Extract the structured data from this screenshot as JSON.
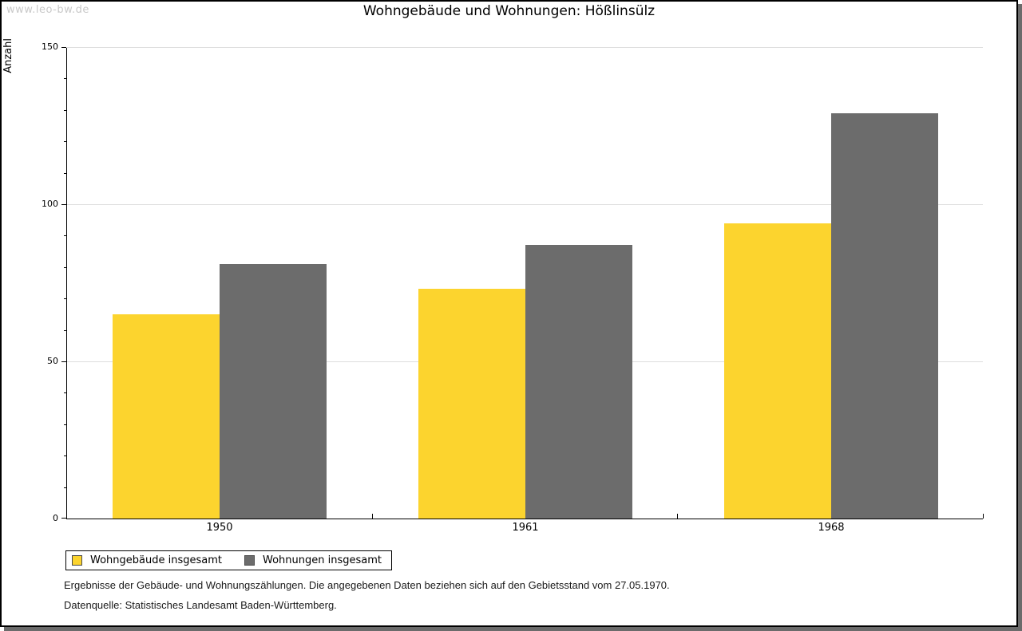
{
  "page": {
    "watermark": "www.leo-bw.de",
    "title": "Wohngebäude und Wohnungen: Hößlinsülz"
  },
  "chart_data": {
    "type": "bar",
    "title": "Wohngebäude und Wohnungen: Hößlinsülz",
    "ylabel": "Anzahl",
    "categories": [
      "1950",
      "1961",
      "1968"
    ],
    "series": [
      {
        "name": "Wohngebäude insgesamt",
        "color": "#FCD42E",
        "values": [
          65,
          73,
          94
        ]
      },
      {
        "name": "Wohnungen insgesamt",
        "color": "#6C6C6C",
        "values": [
          81,
          87,
          129
        ]
      }
    ],
    "ylim": [
      0,
      150
    ],
    "yticks": [
      0,
      50,
      100,
      150
    ],
    "minor_tick_step": 10,
    "grid": "horizontal-major",
    "legend_position": "bottom-left"
  },
  "footer": {
    "line1": "Ergebnisse der Gebäude- und Wohnungszählungen. Die angegebenen Daten beziehen sich auf den Gebietsstand vom 27.05.1970.",
    "line2": "Datenquelle: Statistisches Landesamt Baden-Württemberg."
  },
  "colors": {
    "bar_yellow": "#FCD42E",
    "bar_gray": "#6C6C6C",
    "gridline": "#DEDEDE",
    "watermark": "#C9C9C9",
    "axis": "#000000",
    "frame_shadow": "#6B6B6B"
  }
}
